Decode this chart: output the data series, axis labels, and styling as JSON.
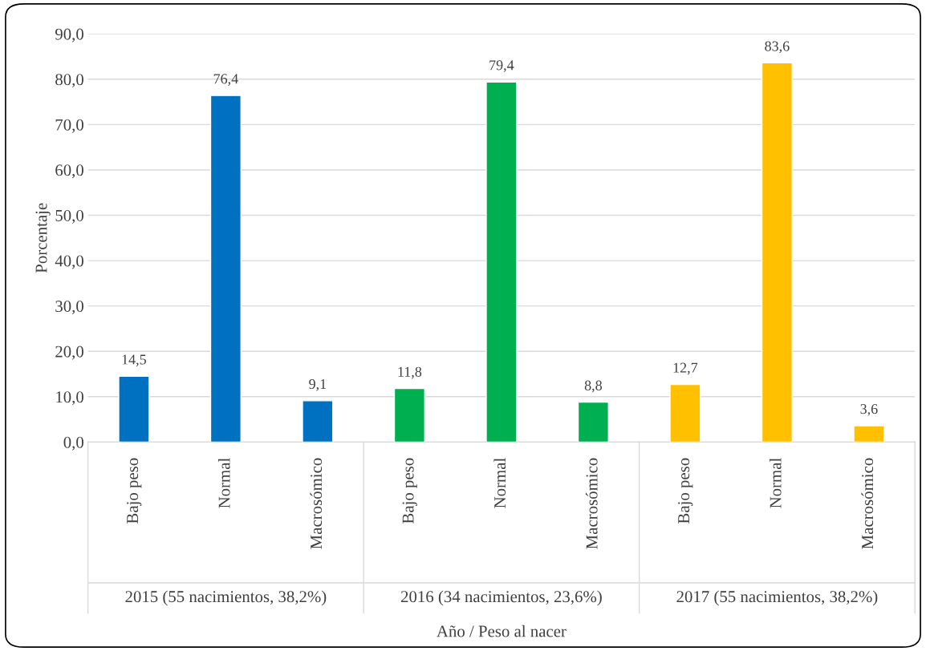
{
  "chart_data": {
    "type": "bar",
    "xlabel": "Año / Peso al nacer",
    "ylabel": "Porcentaje",
    "categories": [
      "Bajo peso",
      "Normal",
      "Macrosómico",
      "Bajo peso",
      "Normal",
      "Macrosómico",
      "Bajo peso",
      "Normal",
      "Macrosómico"
    ],
    "values": [
      14.5,
      76.4,
      9.1,
      11.8,
      79.4,
      8.8,
      12.7,
      83.6,
      3.6
    ],
    "colors": [
      "#0070c0",
      "#0070c0",
      "#0070c0",
      "#00b050",
      "#00b050",
      "#00b050",
      "#ffc000",
      "#ffc000",
      "#ffc000"
    ],
    "value_labels": [
      "14,5",
      "76,4",
      "9,1",
      "11,8",
      "79,4",
      "8,8",
      "12,7",
      "83,6",
      "3,6"
    ],
    "annotations": [
      "2015 (55 nacimientos, 38,2%)",
      "2016 (34 nacimientos, 23,6%)",
      "2017 (55 nacimientos, 38,2%)"
    ],
    "ylim": [
      0,
      90
    ],
    "yticks": [
      {
        "value": 0,
        "label": "0,0"
      },
      {
        "value": 10,
        "label": "10,0"
      },
      {
        "value": 20,
        "label": "20,0"
      },
      {
        "value": 30,
        "label": "30,0"
      },
      {
        "value": 40,
        "label": "40,0"
      },
      {
        "value": 50,
        "label": "50,0"
      },
      {
        "value": 60,
        "label": "60,0"
      },
      {
        "value": 70,
        "label": "70,0"
      },
      {
        "value": 80,
        "label": "80,0"
      },
      {
        "value": 90,
        "label": "90,0"
      }
    ],
    "grid": "y"
  }
}
